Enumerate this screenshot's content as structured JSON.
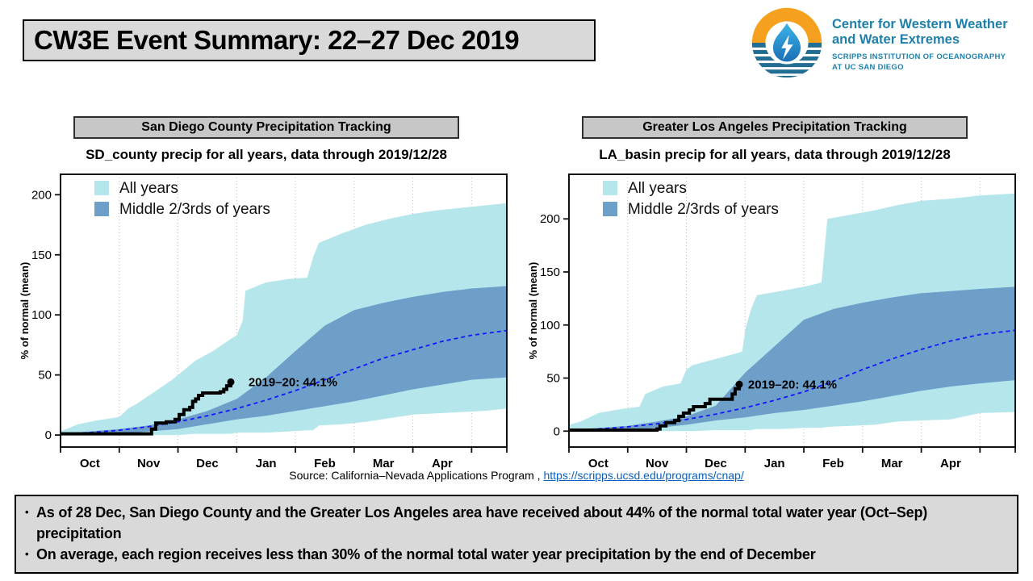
{
  "slide": {
    "title": "CW3E Event Summary: 22–27 Dec 2019",
    "logo": {
      "org_line1": "Center for Western Weather",
      "org_line2": "and Water Extremes",
      "sub_line1": "SCRIPPS INSTITUTION OF OCEANOGRAPHY",
      "sub_line2": "AT UC SAN DIEGO",
      "colors": {
        "orange": "#f5a11f",
        "blue": "#226e92",
        "drop_top": "#3cb4e7",
        "drop_bottom": "#1a6fb5"
      }
    },
    "source": {
      "prefix": "Source:  California–Nevada Applications Program , ",
      "link": "https://scripps.ucsd.edu/programs/cnap/"
    },
    "bullets": [
      "As of 28 Dec, San Diego County and the Greater Los Angeles area have received about 44% of the normal total water year (Oct–Sep) precipitation",
      "On average, each region receives less than 30% of the normal total water year precipitation by the end of December"
    ]
  },
  "chart_data": [
    {
      "type": "area",
      "region": "San Diego County",
      "header": "San Diego County Precipitation Tracking",
      "title": "SD_county precip for all years, data through 2019/12/28",
      "ylabel": "% of normal (mean)",
      "xticklabels": [
        "Oct",
        "Nov",
        "Dec",
        "Jan",
        "Feb",
        "Mar",
        "Apr"
      ],
      "yticks": [
        0,
        50,
        100,
        150,
        200
      ],
      "xlim": [
        0,
        7.6
      ],
      "ylim": [
        -10,
        217
      ],
      "grid": "vertical-dotted",
      "colors": {
        "all": "#b4e6ec",
        "middle": "#6d9fc9",
        "mean": "#1515ff",
        "observed": "#000000",
        "grid": "#bbbbbb"
      },
      "legend": [
        {
          "label": "All years",
          "color": "#b4e6ec"
        },
        {
          "label": "Middle 2/3rds of years",
          "color": "#6d9fc9"
        }
      ],
      "annotation": {
        "text": "2019–20: 44.1%",
        "x": 3.2,
        "y": 44
      },
      "bands": {
        "all": {
          "x": [
            0,
            0.3,
            0.6,
            1,
            1.15,
            1.3,
            1.6,
            1.9,
            2,
            2.3,
            2.6,
            2.9,
            3,
            3.1,
            3.15,
            3.5,
            3.9,
            4.2,
            4.3,
            4.4,
            4.8,
            5.2,
            5.6,
            6,
            6.4,
            6.8,
            7.2,
            7.6
          ],
          "max": [
            3,
            9,
            12,
            15,
            22,
            26,
            36,
            46,
            50,
            62,
            70,
            80,
            83,
            95,
            120,
            127,
            130,
            131,
            148,
            160,
            168,
            175,
            180,
            184,
            187,
            189,
            191,
            193
          ],
          "min": [
            0,
            0,
            0,
            0,
            0,
            0,
            0,
            0,
            0,
            1,
            1,
            1,
            2,
            2,
            2,
            2,
            3,
            4,
            4,
            8,
            9,
            11,
            14,
            17,
            18,
            19,
            20,
            22
          ]
        },
        "middle": {
          "x": [
            0,
            0.5,
            1,
            1.5,
            2,
            2.5,
            3,
            3.5,
            4,
            4.5,
            5,
            5.5,
            6,
            6.5,
            7,
            7.6
          ],
          "max": [
            1,
            3,
            5,
            8,
            13,
            20,
            30,
            48,
            70,
            91,
            104,
            110,
            115,
            119,
            122,
            124
          ],
          "min": [
            0,
            0,
            1,
            3,
            5,
            9,
            13,
            16,
            20,
            24,
            28,
            33,
            38,
            42,
            46,
            48
          ]
        }
      },
      "mean": {
        "x": [
          0,
          0.5,
          1,
          1.5,
          2,
          2.5,
          3,
          3.5,
          4,
          4.5,
          5,
          5.5,
          6,
          6.5,
          7,
          7.6
        ],
        "y": [
          1,
          2,
          4,
          7,
          11,
          16,
          22,
          29,
          37,
          46,
          55,
          64,
          71,
          78,
          83,
          87
        ]
      },
      "observed": {
        "season": "2019–20",
        "final_value_pct": 44.1,
        "points": [
          [
            0,
            1
          ],
          [
            1.55,
            5
          ],
          [
            1.62,
            10
          ],
          [
            1.8,
            11
          ],
          [
            1.95,
            13
          ],
          [
            2.02,
            17
          ],
          [
            2.1,
            21
          ],
          [
            2.2,
            23
          ],
          [
            2.25,
            28
          ],
          [
            2.3,
            30
          ],
          [
            2.35,
            33
          ],
          [
            2.42,
            35
          ],
          [
            2.72,
            36
          ],
          [
            2.78,
            38
          ],
          [
            2.83,
            41
          ],
          [
            2.9,
            44.1
          ]
        ]
      }
    },
    {
      "type": "area",
      "region": "Greater Los Angeles",
      "header": "Greater Los Angeles Precipitation Tracking",
      "title": "LA_basin precip for all years, data through 2019/12/28",
      "ylabel": "% of normal (mean)",
      "xticklabels": [
        "Oct",
        "Nov",
        "Dec",
        "Jan",
        "Feb",
        "Mar",
        "Apr"
      ],
      "yticks": [
        0,
        50,
        100,
        150,
        200
      ],
      "xlim": [
        0,
        7.6
      ],
      "ylim": [
        -15,
        242
      ],
      "grid": "vertical-dotted",
      "colors": {
        "all": "#b4e6ec",
        "middle": "#6d9fc9",
        "mean": "#1515ff",
        "observed": "#000000",
        "grid": "#bbbbbb"
      },
      "legend": [
        {
          "label": "All years",
          "color": "#b4e6ec"
        },
        {
          "label": "Middle 2/3rds of years",
          "color": "#6d9fc9"
        }
      ],
      "annotation": {
        "text": "2019–20: 44.1%",
        "x": 3.05,
        "y": 44
      },
      "bands": {
        "all": {
          "x": [
            0,
            0.2,
            0.5,
            0.9,
            1.2,
            1.3,
            1.6,
            1.9,
            2,
            2.1,
            2.5,
            2.9,
            2.95,
            3,
            3.1,
            3.2,
            3.6,
            4,
            4.3,
            4.4,
            4.8,
            5.2,
            5.6,
            6,
            6.5,
            7,
            7.6
          ],
          "max": [
            6,
            9,
            17,
            21,
            23,
            35,
            42,
            45,
            58,
            62,
            68,
            74,
            75,
            95,
            115,
            128,
            132,
            136,
            140,
            200,
            204,
            208,
            213,
            217,
            219,
            222,
            224
          ],
          "min": [
            0,
            0,
            0,
            0,
            0,
            0,
            0,
            0,
            0,
            0,
            1,
            1,
            1,
            1,
            1,
            2,
            2,
            3,
            3,
            4,
            5,
            6,
            9,
            10,
            11,
            17,
            18
          ]
        },
        "middle": {
          "x": [
            0,
            0.5,
            1,
            1.5,
            2,
            2.5,
            3,
            3.5,
            4,
            4.5,
            5,
            5.5,
            6,
            6.5,
            7,
            7.6
          ],
          "max": [
            1,
            3,
            5,
            9,
            14,
            24,
            55,
            80,
            105,
            115,
            121,
            126,
            130,
            132,
            134,
            136
          ],
          "min": [
            0,
            0,
            1,
            3,
            6,
            10,
            13,
            17,
            20,
            24,
            28,
            33,
            38,
            42,
            45,
            48
          ]
        }
      },
      "mean": {
        "x": [
          0,
          0.5,
          1,
          1.5,
          2,
          2.5,
          3,
          3.5,
          4,
          4.5,
          5,
          5.5,
          6,
          6.5,
          7,
          7.6
        ],
        "y": [
          1,
          2,
          4,
          7,
          11,
          16,
          22,
          29,
          37,
          47,
          58,
          68,
          77,
          85,
          91,
          95
        ]
      },
      "observed": {
        "season": "2019–20",
        "final_value_pct": 44.1,
        "points": [
          [
            0,
            1
          ],
          [
            1.5,
            2
          ],
          [
            1.55,
            5
          ],
          [
            1.65,
            8
          ],
          [
            1.8,
            10
          ],
          [
            1.87,
            14
          ],
          [
            1.95,
            17
          ],
          [
            2.05,
            20
          ],
          [
            2.12,
            23
          ],
          [
            2.32,
            26
          ],
          [
            2.4,
            30
          ],
          [
            2.78,
            35
          ],
          [
            2.83,
            40
          ],
          [
            2.9,
            44.1
          ]
        ]
      }
    }
  ]
}
